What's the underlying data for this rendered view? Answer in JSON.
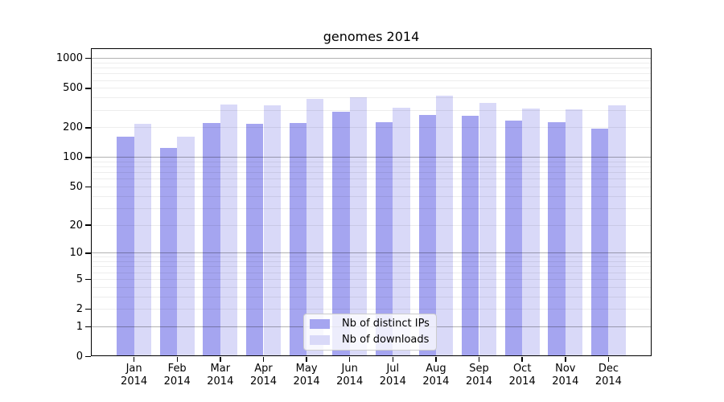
{
  "title": "genomes 2014",
  "legend": {
    "items": [
      {
        "label": "Nb of distinct IPs",
        "color": "#a5a5f0"
      },
      {
        "label": "Nb of downloads",
        "color": "#d9d9f8"
      }
    ]
  },
  "axes": {
    "y_ticks": [
      {
        "label": "0",
        "value": 0
      },
      {
        "label": "1",
        "value": 1
      },
      {
        "label": "2",
        "value": 2
      },
      {
        "label": "5",
        "value": 5
      },
      {
        "label": "10",
        "value": 10
      },
      {
        "label": "20",
        "value": 20
      },
      {
        "label": "50",
        "value": 50
      },
      {
        "label": "100",
        "value": 100
      },
      {
        "label": "200",
        "value": 200
      },
      {
        "label": "500",
        "value": 500
      },
      {
        "label": "1000",
        "value": 1000
      }
    ],
    "x_ticks": [
      {
        "month": "Jan",
        "year": "2014"
      },
      {
        "month": "Feb",
        "year": "2014"
      },
      {
        "month": "Mar",
        "year": "2014"
      },
      {
        "month": "Apr",
        "year": "2014"
      },
      {
        "month": "May",
        "year": "2014"
      },
      {
        "month": "Jun",
        "year": "2014"
      },
      {
        "month": "Jul",
        "year": "2014"
      },
      {
        "month": "Aug",
        "year": "2014"
      },
      {
        "month": "Sep",
        "year": "2014"
      },
      {
        "month": "Oct",
        "year": "2014"
      },
      {
        "month": "Nov",
        "year": "2014"
      },
      {
        "month": "Dec",
        "year": "2014"
      }
    ]
  },
  "chart_data": {
    "type": "bar",
    "title": "genomes 2014",
    "scale": "log10(1+x)",
    "grid": true,
    "legend_position": "lower center",
    "categories": [
      "Jan 2014",
      "Feb 2014",
      "Mar 2014",
      "Apr 2014",
      "May 2014",
      "Jun 2014",
      "Jul 2014",
      "Aug 2014",
      "Sep 2014",
      "Oct 2014",
      "Nov 2014",
      "Dec 2014"
    ],
    "series": [
      {
        "name": "Nb of distinct IPs",
        "color": "#a5a5f0",
        "values": [
          161,
          124,
          222,
          219,
          221,
          287,
          224,
          266,
          260,
          232,
          227,
          193
        ]
      },
      {
        "name": "Nb of downloads",
        "color": "#d9d9f8",
        "values": [
          216,
          162,
          340,
          335,
          385,
          402,
          315,
          415,
          350,
          311,
          306,
          335
        ]
      }
    ],
    "ylim": [
      0,
      1254
    ],
    "y_tick_values": [
      0,
      1,
      2,
      5,
      10,
      20,
      50,
      100,
      200,
      500,
      1000
    ]
  }
}
